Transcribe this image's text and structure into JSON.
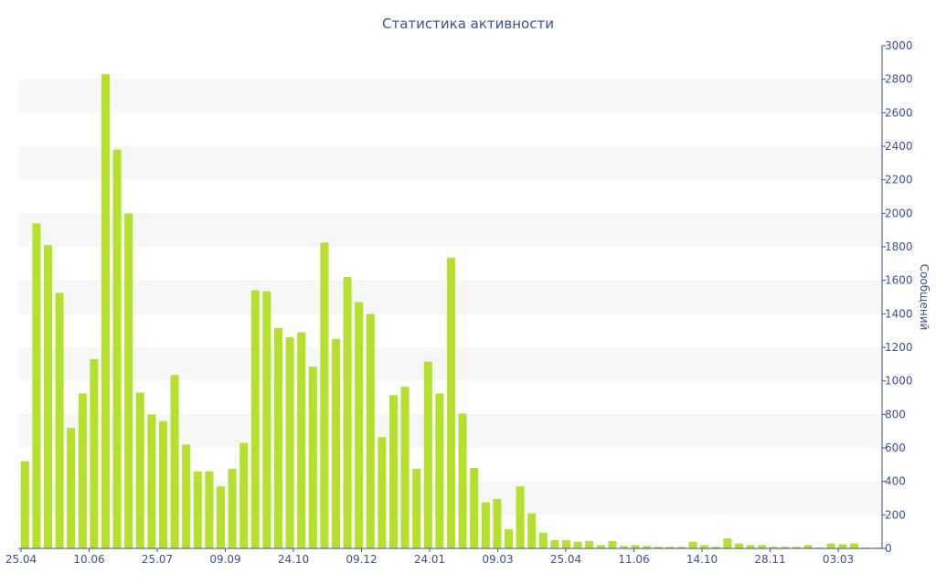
{
  "chart_data": {
    "type": "bar",
    "title": "Статистика активности",
    "ylabel": "Сообщений",
    "xlabel": "",
    "ylim": [
      0,
      3000
    ],
    "yticks": [
      0,
      200,
      400,
      600,
      800,
      1000,
      1200,
      1400,
      1600,
      1800,
      2000,
      2200,
      2400,
      2600,
      2800,
      3000
    ],
    "xtick_labels": [
      "25.04",
      "10.06",
      "25.07",
      "09.09",
      "24.10",
      "09.12",
      "24.01",
      "09.03",
      "25.04",
      "11.06",
      "14.10",
      "28.11",
      "03.03"
    ],
    "bar_color": "#b5e02d",
    "band_color": "#f7f7f7",
    "axis_color": "#3f4f8f",
    "y_axis_side": "right",
    "values": [
      520,
      1940,
      1810,
      1525,
      720,
      925,
      1130,
      2830,
      2380,
      2000,
      930,
      800,
      760,
      1035,
      620,
      460,
      460,
      370,
      475,
      630,
      1540,
      1535,
      1315,
      1260,
      1290,
      1085,
      1825,
      1250,
      1620,
      1470,
      1400,
      665,
      915,
      965,
      475,
      1115,
      925,
      1735,
      805,
      480,
      275,
      295,
      115,
      370,
      210,
      95,
      50,
      50,
      40,
      45,
      20,
      45,
      15,
      20,
      15,
      10,
      10,
      10,
      40,
      20,
      10,
      60,
      30,
      20,
      20,
      10,
      10,
      10,
      20,
      5,
      30,
      25,
      30,
      5,
      5
    ]
  }
}
